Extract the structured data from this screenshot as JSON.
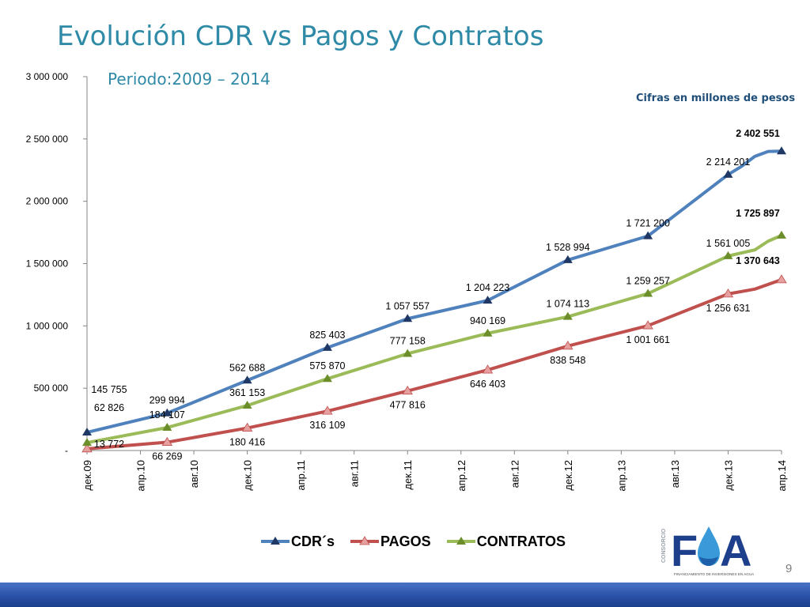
{
  "slide": {
    "title": "Evolución CDR vs Pagos y Contratos",
    "subtitle": "Periodo:2009 – 2014",
    "units_note": "Cifras en millones de pesos",
    "page_number": "9"
  },
  "chart_data": {
    "type": "line",
    "x": [
      "дек.09",
      "мар.10",
      "июн.10",
      "сен.10",
      "дек.10",
      "мар.11",
      "июн.11",
      "сен.11",
      "дек.11",
      "мар.12",
      "июн.12",
      "сен.12",
      "дек.12",
      "мар.13",
      "июн.13",
      "сен.13",
      "дек.13",
      "фев.14",
      "мар.14",
      "апр.14"
    ],
    "x_tick_labels": [
      "дек.09",
      "апр.10",
      "авг.10",
      "дек.10",
      "апр.11",
      "авг.11",
      "дек.11",
      "апр.12",
      "авг.12",
      "дек.12",
      "апр.13",
      "авг.13",
      "дек.13",
      "апр.14"
    ],
    "y_tick_labels": [
      "-",
      "500 000",
      "1 000 000",
      "1 500 000",
      "2 000 000",
      "2 500 000",
      "3 000 000"
    ],
    "ylim": [
      0,
      3000000
    ],
    "grid": false,
    "legend_position": "bottom",
    "series": [
      {
        "name": "CDR´s",
        "color": "#4f81bd",
        "marker_color": "#1f3864",
        "points": [
          {
            "x": "дек.09",
            "y": 145755,
            "label": "145 755",
            "marked": true
          },
          {
            "x": "июн.10",
            "y": 299994,
            "label": "299 994",
            "marked": true
          },
          {
            "x": "дек.10",
            "y": 562688,
            "label": "562 688",
            "marked": true
          },
          {
            "x": "июн.11",
            "y": 825403,
            "label": "825 403",
            "marked": true
          },
          {
            "x": "дек.11",
            "y": 1057557,
            "label": "1 057 557",
            "marked": true
          },
          {
            "x": "июн.12",
            "y": 1204223,
            "label": "1 204 223",
            "marked": true
          },
          {
            "x": "дек.12",
            "y": 1528994,
            "label": "1 528 994",
            "marked": true
          },
          {
            "x": "июн.13",
            "y": 1721200,
            "label": "1 721 200",
            "marked": true
          },
          {
            "x": "сен.13",
            "y": 1968000,
            "label": "",
            "marked": false
          },
          {
            "x": "дек.13",
            "y": 2214201,
            "label": "2 214 201",
            "marked": true
          },
          {
            "x": "янв.14",
            "y": 2280000,
            "label": "",
            "marked": false
          },
          {
            "x": "фев.14",
            "y": 2360000,
            "label": "",
            "marked": false
          },
          {
            "x": "мар.14",
            "y": 2400000,
            "label": "",
            "marked": false
          },
          {
            "x": "апр.14",
            "y": 2402551,
            "label": "2 402 551",
            "marked": true,
            "bold": true
          }
        ]
      },
      {
        "name": "PAGOS",
        "color": "#c0504d",
        "marker_color": "#e6a0a0",
        "points": [
          {
            "x": "дек.09",
            "y": 13772,
            "label": "13 772",
            "marked": true
          },
          {
            "x": "июн.10",
            "y": 66269,
            "label": "66 269",
            "marked": true
          },
          {
            "x": "дек.10",
            "y": 180416,
            "label": "180 416",
            "marked": true
          },
          {
            "x": "июн.11",
            "y": 316109,
            "label": "316 109",
            "marked": true
          },
          {
            "x": "дек.11",
            "y": 477816,
            "label": "477 816",
            "marked": true
          },
          {
            "x": "июн.12",
            "y": 646403,
            "label": "646 403",
            "marked": true
          },
          {
            "x": "дек.12",
            "y": 838548,
            "label": "838 548",
            "marked": true
          },
          {
            "x": "июн.13",
            "y": 1001661,
            "label": "1 001 661",
            "marked": true
          },
          {
            "x": "дек.13",
            "y": 1256631,
            "label": "1 256 631",
            "marked": true
          },
          {
            "x": "фев.14",
            "y": 1295000,
            "label": "",
            "marked": false
          },
          {
            "x": "апр.14",
            "y": 1370643,
            "label": "1 370 643",
            "marked": true,
            "bold": true
          }
        ]
      },
      {
        "name": "CONTRATOS",
        "color": "#9bbb59",
        "marker_color": "#6b8e2b",
        "points": [
          {
            "x": "дек.09",
            "y": 62826,
            "label": "62 826",
            "marked": true
          },
          {
            "x": "июн.10",
            "y": 184107,
            "label": "184 107",
            "marked": true
          },
          {
            "x": "дек.10",
            "y": 361153,
            "label": "361 153",
            "marked": true
          },
          {
            "x": "июн.11",
            "y": 575870,
            "label": "575 870",
            "marked": true
          },
          {
            "x": "дек.11",
            "y": 777158,
            "label": "777 158",
            "marked": true
          },
          {
            "x": "июн.12",
            "y": 940169,
            "label": "940 169",
            "marked": true
          },
          {
            "x": "дек.12",
            "y": 1074113,
            "label": "1 074 113",
            "marked": true
          },
          {
            "x": "июн.13",
            "y": 1259257,
            "label": "1 259 257",
            "marked": true
          },
          {
            "x": "дек.13",
            "y": 1561005,
            "label": "1 561 005",
            "marked": true
          },
          {
            "x": "фев.14",
            "y": 1610000,
            "label": "",
            "marked": false
          },
          {
            "x": "мар.14",
            "y": 1680000,
            "label": "",
            "marked": false
          },
          {
            "x": "апр.14",
            "y": 1725897,
            "label": "1 725 897",
            "marked": true,
            "bold": true
          }
        ]
      }
    ]
  },
  "logo": {
    "side_text": "CONSORCIO",
    "letters_left": "F",
    "letters_right": "A",
    "tagline": "FINANCIAMIENTO DE INVERSIONES EN AGUA"
  },
  "colors": {
    "title": "#2e8aa6",
    "units_note": "#1f4e79",
    "bottom_bar": "#2a52a8"
  }
}
